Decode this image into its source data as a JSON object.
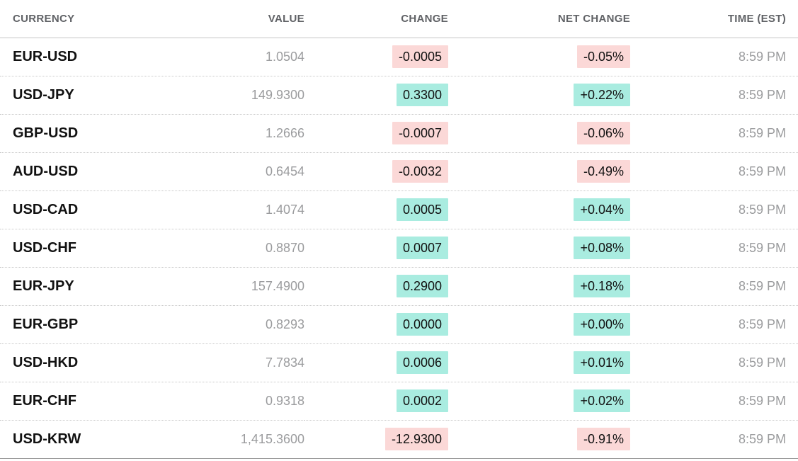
{
  "colors": {
    "positive_badge_bg": "#a9ece0",
    "negative_badge_bg": "#fbd8d7",
    "header_text": "#606266",
    "ticker_text": "#121212",
    "muted_text": "#9b9c9e"
  },
  "table": {
    "columns": [
      {
        "key": "currency",
        "label": "CURRENCY"
      },
      {
        "key": "value",
        "label": "VALUE"
      },
      {
        "key": "change",
        "label": "CHANGE"
      },
      {
        "key": "net_change",
        "label": "NET CHANGE"
      },
      {
        "key": "time",
        "label": "TIME (EST)"
      }
    ],
    "rows": [
      {
        "currency": "EUR-USD",
        "value": "1.0504",
        "change": "-0.0005",
        "net_change": "-0.05%",
        "time": "8:59 PM",
        "direction": "down"
      },
      {
        "currency": "USD-JPY",
        "value": "149.9300",
        "change": "0.3300",
        "net_change": "+0.22%",
        "time": "8:59 PM",
        "direction": "up"
      },
      {
        "currency": "GBP-USD",
        "value": "1.2666",
        "change": "-0.0007",
        "net_change": "-0.06%",
        "time": "8:59 PM",
        "direction": "down"
      },
      {
        "currency": "AUD-USD",
        "value": "0.6454",
        "change": "-0.0032",
        "net_change": "-0.49%",
        "time": "8:59 PM",
        "direction": "down"
      },
      {
        "currency": "USD-CAD",
        "value": "1.4074",
        "change": "0.0005",
        "net_change": "+0.04%",
        "time": "8:59 PM",
        "direction": "up"
      },
      {
        "currency": "USD-CHF",
        "value": "0.8870",
        "change": "0.0007",
        "net_change": "+0.08%",
        "time": "8:59 PM",
        "direction": "up"
      },
      {
        "currency": "EUR-JPY",
        "value": "157.4900",
        "change": "0.2900",
        "net_change": "+0.18%",
        "time": "8:59 PM",
        "direction": "up"
      },
      {
        "currency": "EUR-GBP",
        "value": "0.8293",
        "change": "0.0000",
        "net_change": "+0.00%",
        "time": "8:59 PM",
        "direction": "up"
      },
      {
        "currency": "USD-HKD",
        "value": "7.7834",
        "change": "0.0006",
        "net_change": "+0.01%",
        "time": "8:59 PM",
        "direction": "up"
      },
      {
        "currency": "EUR-CHF",
        "value": "0.9318",
        "change": "0.0002",
        "net_change": "+0.02%",
        "time": "8:59 PM",
        "direction": "up"
      },
      {
        "currency": "USD-KRW",
        "value": "1,415.3600",
        "change": "-12.9300",
        "net_change": "-0.91%",
        "time": "8:59 PM",
        "direction": "down"
      }
    ]
  },
  "chart_data": {
    "type": "table",
    "title": "",
    "columns": [
      "CURRENCY",
      "VALUE",
      "CHANGE",
      "NET CHANGE",
      "TIME (EST)"
    ],
    "rows": [
      [
        "EUR-USD",
        1.0504,
        -0.0005,
        "-0.05%",
        "8:59 PM"
      ],
      [
        "USD-JPY",
        149.93,
        0.33,
        "+0.22%",
        "8:59 PM"
      ],
      [
        "GBP-USD",
        1.2666,
        -0.0007,
        "-0.06%",
        "8:59 PM"
      ],
      [
        "AUD-USD",
        0.6454,
        -0.0032,
        "-0.49%",
        "8:59 PM"
      ],
      [
        "USD-CAD",
        1.4074,
        0.0005,
        "+0.04%",
        "8:59 PM"
      ],
      [
        "USD-CHF",
        0.887,
        0.0007,
        "+0.08%",
        "8:59 PM"
      ],
      [
        "EUR-JPY",
        157.49,
        0.29,
        "+0.18%",
        "8:59 PM"
      ],
      [
        "EUR-GBP",
        0.8293,
        0.0,
        "+0.00%",
        "8:59 PM"
      ],
      [
        "USD-HKD",
        7.7834,
        0.0006,
        "+0.01%",
        "8:59 PM"
      ],
      [
        "EUR-CHF",
        0.9318,
        0.0002,
        "+0.02%",
        "8:59 PM"
      ],
      [
        "USD-KRW",
        1415.36,
        -12.93,
        "-0.91%",
        "8:59 PM"
      ]
    ]
  }
}
